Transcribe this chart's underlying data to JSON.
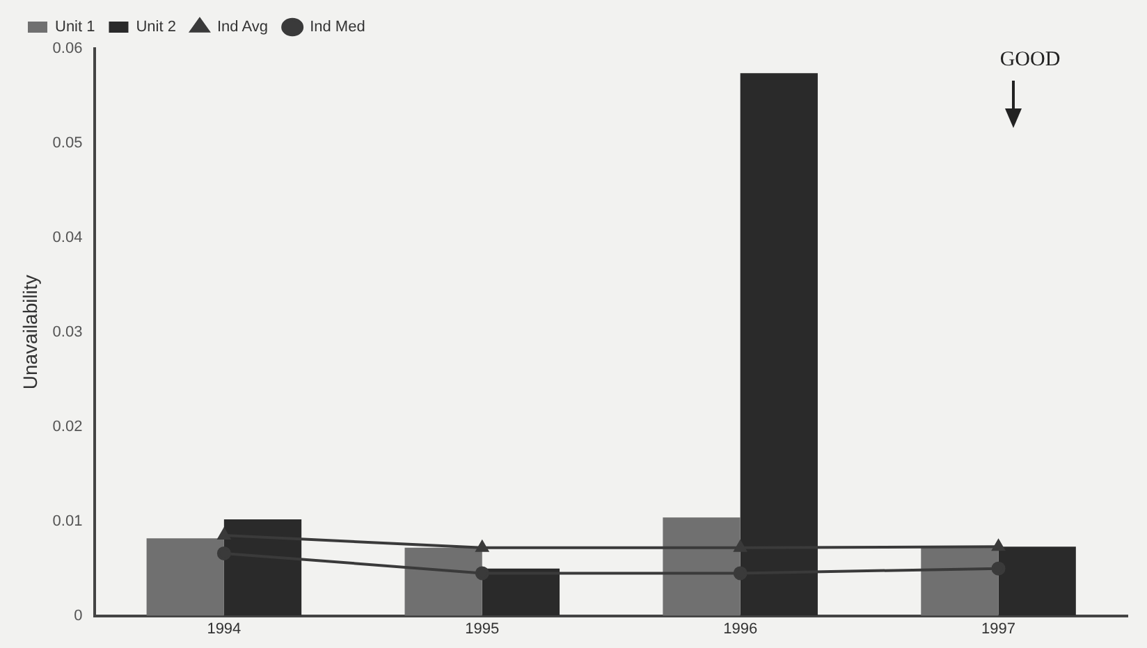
{
  "chart_data": {
    "type": "bar",
    "ylabel": "Unavailability",
    "categories": [
      "1994",
      "1995",
      "1996",
      "1997"
    ],
    "series": [
      {
        "name": "Unit 1",
        "color": "#707070",
        "values": [
          0.0082,
          0.0072,
          0.0104,
          0.0073
        ]
      },
      {
        "name": "Unit 2",
        "color": "#2a2a2a",
        "values": [
          0.0102,
          0.005,
          0.0574,
          0.0073
        ]
      },
      {
        "name": "Ind Avg",
        "type": "line",
        "marker": "triangle",
        "color": "#3a3a3a",
        "values": [
          0.0085,
          0.0072,
          0.0072,
          0.0073
        ]
      },
      {
        "name": "Ind Med",
        "type": "line",
        "marker": "circle",
        "color": "#3a3a3a",
        "values": [
          0.0066,
          0.0045,
          0.0045,
          0.005
        ]
      }
    ],
    "ylim": [
      0,
      0.06
    ],
    "yticks": [
      0,
      0.01,
      0.02,
      0.03,
      0.04,
      0.05,
      0.06
    ],
    "grid": false,
    "legend": "top left",
    "annotations": [
      "GOOD"
    ]
  }
}
